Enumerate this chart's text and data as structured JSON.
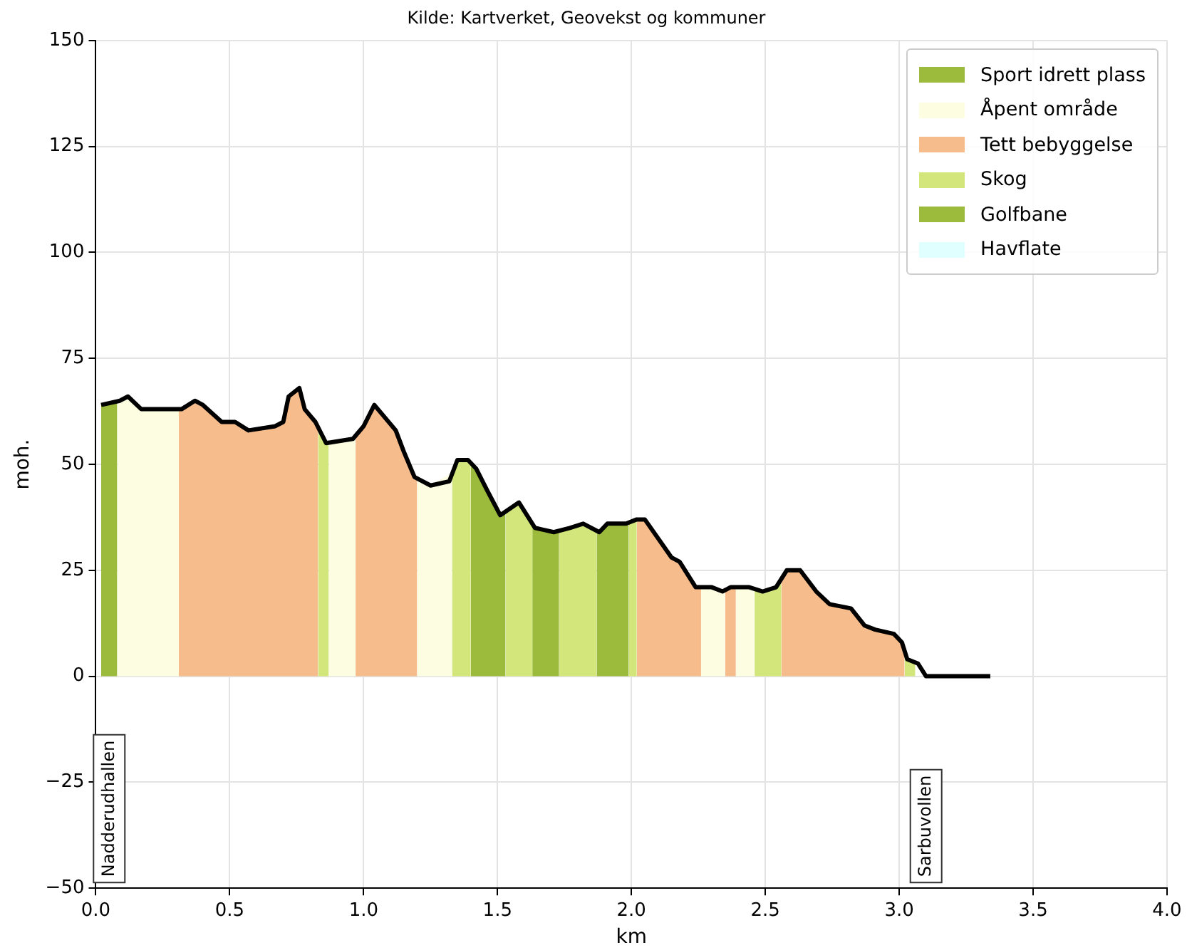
{
  "chart_data": {
    "type": "area",
    "title": "Kilde: Kartverket, Geovekst og kommuner",
    "xlabel": "km",
    "ylabel": "moh.",
    "xlim": [
      0,
      4
    ],
    "xticks": [
      {
        "value": 0,
        "label": "0.0"
      },
      0.5,
      {
        "value": 1,
        "label": "1.0"
      },
      1.5,
      {
        "value": 2,
        "label": "2.0"
      },
      2.5,
      {
        "value": 3,
        "label": "3.0"
      },
      3.5,
      {
        "value": 4,
        "label": "4.0"
      }
    ],
    "ylim": [
      -50,
      150
    ],
    "yticks": [
      {
        "value": -50,
        "label": "−50"
      },
      {
        "value": -25,
        "label": "−25"
      },
      0,
      25,
      50,
      75,
      100,
      125,
      150
    ],
    "grid": true,
    "legend": "top right",
    "marker": "none",
    "series": [
      {
        "name": "Sport idrett plass",
        "color": "#9cba3c",
        "x": [
          0.02,
          0.08
        ],
        "values": [
          64,
          65
        ]
      },
      {
        "name": "Åpent område",
        "color": "#fdfde2",
        "x": [
          0.08,
          0.09,
          0.12,
          0.17,
          0.25,
          0.31
        ],
        "values": [
          65,
          65,
          66,
          63,
          63,
          63
        ]
      },
      {
        "name": "Tett bebyggelse",
        "color": "#f6bc8c",
        "x": [
          0.31,
          0.32,
          0.37,
          0.4,
          0.47,
          0.52,
          0.57,
          0.67,
          0.7,
          0.72,
          0.76,
          0.78,
          0.82,
          0.83
        ],
        "values": [
          63,
          63,
          65,
          64,
          60,
          60,
          58,
          59,
          60,
          66,
          68,
          63,
          60,
          59
        ]
      },
      {
        "name": "Skog",
        "color": "#d3e67b",
        "x": [
          0.83,
          0.86,
          0.87
        ],
        "values": [
          59,
          55,
          55
        ]
      },
      {
        "name": "Golfbane",
        "color": "#9cba3c",
        "x": [
          1.4,
          1.42,
          1.46,
          1.51,
          1.53
        ],
        "values": [
          50,
          49,
          44,
          38,
          39
        ]
      },
      {
        "name": "Havflate",
        "color": "#e0ffff"
      },
      {
        "color": "#fdfde2",
        "x": [
          0.87,
          0.96,
          0.97
        ],
        "values": [
          55,
          56,
          56
        ]
      },
      {
        "color": "#f6bc8c",
        "x": [
          0.97,
          1.0,
          1.04,
          1.12,
          1.15,
          1.19,
          1.2
        ],
        "values": [
          56,
          59,
          64,
          58,
          53,
          47,
          47
        ]
      },
      {
        "color": "#fdfde2",
        "x": [
          1.2,
          1.25,
          1.33
        ],
        "values": [
          47,
          45,
          48
        ]
      },
      {
        "color": "#d3e67b",
        "x": [
          1.33,
          1.35,
          1.39,
          1.4
        ],
        "values": [
          48,
          51,
          51,
          50
        ]
      },
      {
        "color": "#d3e67b",
        "x": [
          1.53,
          1.58,
          1.63
        ],
        "values": [
          39,
          41,
          36
        ]
      },
      {
        "color": "#9cba3c",
        "x": [
          1.63,
          1.64,
          1.71,
          1.73
        ],
        "values": [
          36,
          35,
          34,
          34
        ]
      },
      {
        "color": "#d3e67b",
        "x": [
          1.73,
          1.77,
          1.82,
          1.87
        ],
        "values": [
          34,
          35,
          36,
          34
        ]
      },
      {
        "color": "#9cba3c",
        "x": [
          1.87,
          1.88,
          1.91,
          1.98,
          1.99
        ],
        "values": [
          34,
          34,
          36,
          36,
          36
        ]
      },
      {
        "color": "#d3e67b",
        "x": [
          1.99,
          2.02
        ],
        "values": [
          36,
          37
        ]
      },
      {
        "color": "#f6bc8c",
        "x": [
          2.02,
          2.05,
          2.15,
          2.18,
          2.24,
          2.26
        ],
        "values": [
          37,
          37,
          28,
          27,
          21,
          21
        ]
      },
      {
        "color": "#fdfde2",
        "x": [
          2.26,
          2.3,
          2.35
        ],
        "values": [
          21,
          21,
          20
        ]
      },
      {
        "color": "#f6bc8c",
        "x": [
          2.35,
          2.37,
          2.39
        ],
        "values": [
          20,
          21,
          21
        ]
      },
      {
        "color": "#fdfde2",
        "x": [
          2.39,
          2.44,
          2.46
        ],
        "values": [
          21,
          21,
          21
        ]
      },
      {
        "color": "#d3e67b",
        "x": [
          2.46,
          2.49,
          2.54,
          2.56
        ],
        "values": [
          21,
          20,
          21,
          23
        ]
      },
      {
        "color": "#f6bc8c",
        "x": [
          2.56,
          2.58,
          2.63,
          2.69,
          2.74,
          2.82,
          2.87,
          2.91,
          2.98,
          3.01,
          3.02
        ],
        "values": [
          23,
          25,
          25,
          20,
          17,
          16,
          12,
          11,
          10,
          8,
          6
        ]
      },
      {
        "color": "#d3e67b",
        "x": [
          3.02,
          3.03,
          3.06
        ],
        "values": [
          6,
          4,
          3
        ]
      },
      {
        "type": "line",
        "color": "#000000",
        "x": [
          0.02,
          0.09,
          0.12,
          0.17,
          0.25,
          0.32,
          0.37,
          0.4,
          0.47,
          0.52,
          0.57,
          0.67,
          0.7,
          0.72,
          0.76,
          0.78,
          0.82,
          0.86,
          0.96,
          1.0,
          1.04,
          1.12,
          1.15,
          1.19,
          1.25,
          1.32,
          1.35,
          1.39,
          1.42,
          1.46,
          1.51,
          1.58,
          1.64,
          1.71,
          1.77,
          1.82,
          1.88,
          1.91,
          1.98,
          2.02,
          2.05,
          2.15,
          2.18,
          2.24,
          2.3,
          2.34,
          2.37,
          2.44,
          2.49,
          2.54,
          2.58,
          2.63,
          2.69,
          2.74,
          2.82,
          2.87,
          2.91,
          2.98,
          3.01,
          3.03,
          3.07,
          3.1,
          3.34
        ],
        "values": [
          64,
          65,
          66,
          63,
          63,
          63,
          65,
          64,
          60,
          60,
          58,
          59,
          60,
          66,
          68,
          63,
          60,
          55,
          56,
          59,
          64,
          58,
          53,
          47,
          45,
          46,
          51,
          51,
          49,
          44,
          38,
          41,
          35,
          34,
          35,
          36,
          34,
          36,
          36,
          37,
          37,
          28,
          27,
          21,
          21,
          20,
          21,
          21,
          20,
          21,
          25,
          25,
          20,
          17,
          16,
          12,
          11,
          10,
          8,
          4,
          3,
          0,
          0
        ]
      }
    ],
    "annotations": [
      "Nadderudhallen",
      "Sarbuvollen"
    ]
  }
}
